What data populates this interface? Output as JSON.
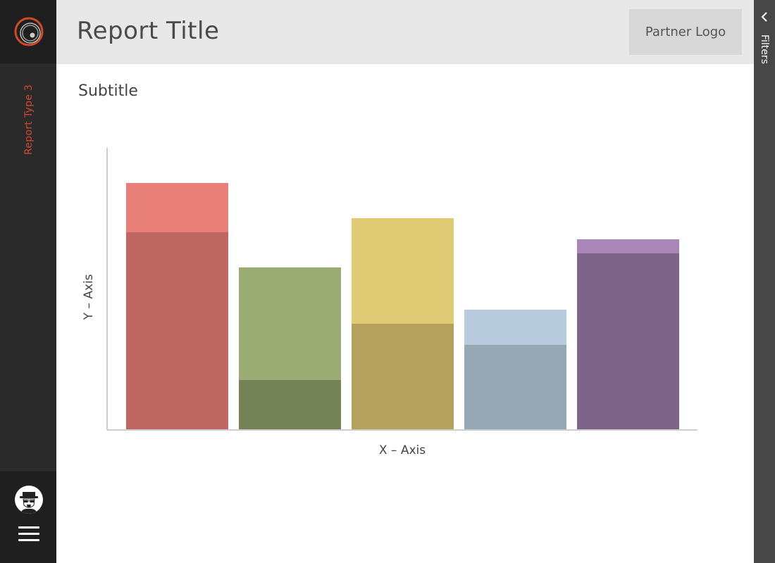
{
  "sidebar": {
    "report_type_label": "Report Type 3",
    "report_type_color": "#d04a2a"
  },
  "header": {
    "title": "Report Title",
    "partner_logo_label": "Partner Logo"
  },
  "main": {
    "subtitle": "Subtitle"
  },
  "filters": {
    "label": "Filters",
    "icon": "chevron-left-icon"
  },
  "chart_data": {
    "type": "bar",
    "stacked": true,
    "categories": [
      "",
      "",
      "",
      "",
      ""
    ],
    "xlabel": "X – Axis",
    "ylabel": "Y – Axis",
    "ylim": [
      0,
      400
    ],
    "grid": false,
    "series": [
      {
        "values": [
          280,
          70,
          150,
          120,
          250
        ],
        "colors": [
          "#be6661",
          "#758256",
          "#b4a25c",
          "#97a8b5",
          "#7e6489"
        ]
      },
      {
        "values": [
          70,
          160,
          150,
          50,
          20
        ],
        "colors": [
          "#e87f78",
          "#9aab73",
          "#e0cb74",
          "#b9ccdd",
          "#a985b8"
        ]
      }
    ]
  }
}
